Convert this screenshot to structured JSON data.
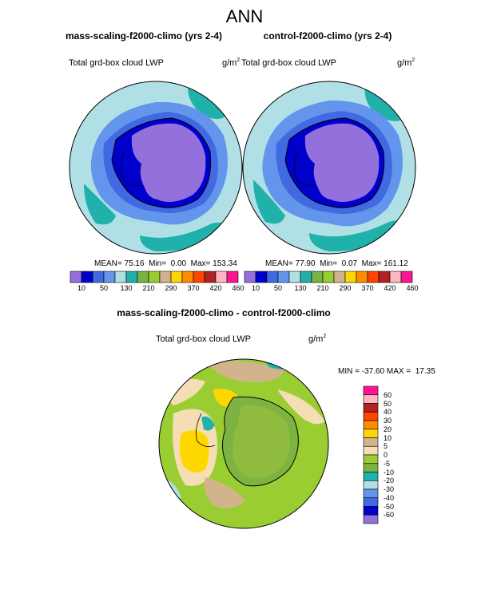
{
  "page": {
    "title": "ANN"
  },
  "panels": [
    {
      "title": "mass-scaling-f2000-climo (yrs 2-4)",
      "label": "Total grd-box cloud LWP",
      "units_base": "g/m",
      "units_exp": "2",
      "stats": {
        "mean_label": "MEAN=",
        "mean": "75.16",
        "min_label": "Min=",
        "min": "0.00",
        "max_label": "Max=",
        "max": "153.34"
      }
    },
    {
      "title": "control-f2000-climo (yrs 2-4)",
      "label": "Total grd-box cloud LWP",
      "units_base": "g/m",
      "units_exp": "2",
      "stats": {
        "mean_label": "MEAN=",
        "mean": "77.90",
        "min_label": "Min=",
        "min": "0.07",
        "max_label": "Max=",
        "max": "161.12"
      }
    },
    {
      "title": "mass-scaling-f2000-climo - control-f2000-climo",
      "label": "Total grd-box cloud LWP",
      "units_base": "g/m",
      "units_exp": "2",
      "stats": {
        "min_label": "MIN =",
        "min": "-37.60",
        "max_label": "MAX =",
        "max": "17.35"
      }
    }
  ],
  "colorbars": {
    "absolute": {
      "colors": [
        "#9370db",
        "#0000cd",
        "#4169e1",
        "#6495ed",
        "#b0e0e6",
        "#20b2aa",
        "#7cb342",
        "#9acd32",
        "#d2b48c",
        "#ffd700",
        "#ff8c00",
        "#ff4500",
        "#b22222",
        "#ffb6c1",
        "#ff1493"
      ],
      "tick_labels": [
        "10",
        "50",
        "130",
        "210",
        "290",
        "370",
        "420",
        "460"
      ]
    },
    "difference": {
      "colors": [
        "#ff1493",
        "#ffb6c1",
        "#b22222",
        "#ff4500",
        "#ff8c00",
        "#ffd700",
        "#d2b48c",
        "#f5deb3",
        "#9acd32",
        "#7cb342",
        "#20b2aa",
        "#b0e0e6",
        "#6495ed",
        "#4169e1",
        "#0000cd",
        "#9370db"
      ],
      "tick_labels": [
        "60",
        "50",
        "40",
        "30",
        "20",
        "10",
        "5",
        "0",
        "-5",
        "-10",
        "-20",
        "-30",
        "-40",
        "-50",
        "-60"
      ]
    }
  },
  "maps": {
    "absolute_fill": {
      "outer": "#b0e0e6",
      "ring": "#6495ed",
      "inner_ring": "#4169e1",
      "coast": "#0000cd",
      "interior": "#9370db",
      "patches": "#20b2aa"
    },
    "difference_fill": {
      "base": "#9acd32",
      "tan": "#d2b48c",
      "wheat": "#f5deb3",
      "yellow": "#ffd700",
      "teal": "#20b2aa",
      "light": "#b0e0e6",
      "interior": "#8fbc3f",
      "ocean_green": "#7cb342"
    }
  }
}
